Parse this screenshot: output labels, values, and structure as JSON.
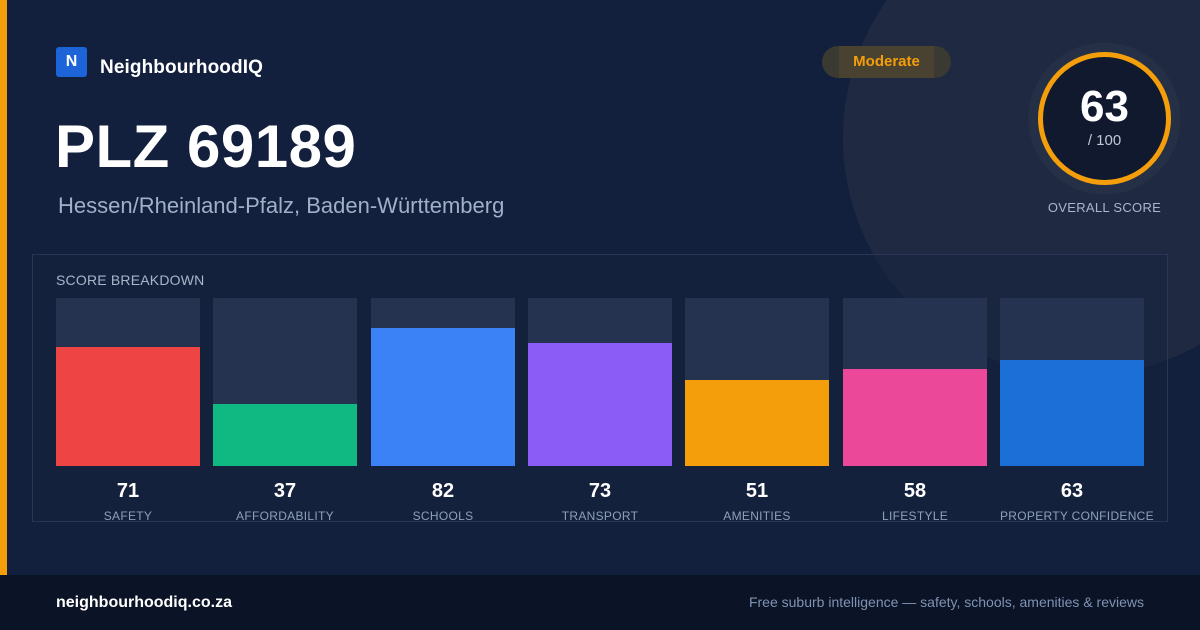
{
  "brand": {
    "logo_letter": "N",
    "name": "NeighbourhoodIQ"
  },
  "badge": {
    "label": "Moderate",
    "color": "#f59e0b"
  },
  "location": {
    "title": "PLZ 69189",
    "region": "Hessen/Rheinland-Pfalz, Baden-Württemberg"
  },
  "overall": {
    "score": "63",
    "out_of": "/ 100",
    "label": "OVERALL SCORE",
    "value": 63,
    "max": 100,
    "ring_color": "#f59e0b"
  },
  "breakdown": {
    "title": "SCORE BREAKDOWN",
    "items": [
      {
        "label": "SAFETY",
        "value": 71,
        "display": "71",
        "color": "#ef4444"
      },
      {
        "label": "AFFORDABILITY",
        "value": 37,
        "display": "37",
        "color": "#10b981"
      },
      {
        "label": "SCHOOLS",
        "value": 82,
        "display": "82",
        "color": "#3b82f6"
      },
      {
        "label": "TRANSPORT",
        "value": 73,
        "display": "73",
        "color": "#8b5cf6"
      },
      {
        "label": "AMENITIES",
        "value": 51,
        "display": "51",
        "color": "#f59e0b"
      },
      {
        "label": "LIFESTYLE",
        "value": 58,
        "display": "58",
        "color": "#ec4899"
      },
      {
        "label": "PROPERTY CONFIDENCE",
        "value": 63,
        "display": "63",
        "color": "#1d6fd8"
      }
    ]
  },
  "chart_data": {
    "type": "bar",
    "categories": [
      "SAFETY",
      "AFFORDABILITY",
      "SCHOOLS",
      "TRANSPORT",
      "AMENITIES",
      "LIFESTYLE",
      "PROPERTY CONFIDENCE"
    ],
    "values": [
      71,
      37,
      82,
      73,
      51,
      58,
      63
    ],
    "title": "SCORE BREAKDOWN",
    "ylim": [
      0,
      100
    ],
    "grid": false
  },
  "footer": {
    "url": "neighbourhoodiq.co.za",
    "tagline": "Free suburb intelligence — safety, schools, amenities & reviews"
  }
}
